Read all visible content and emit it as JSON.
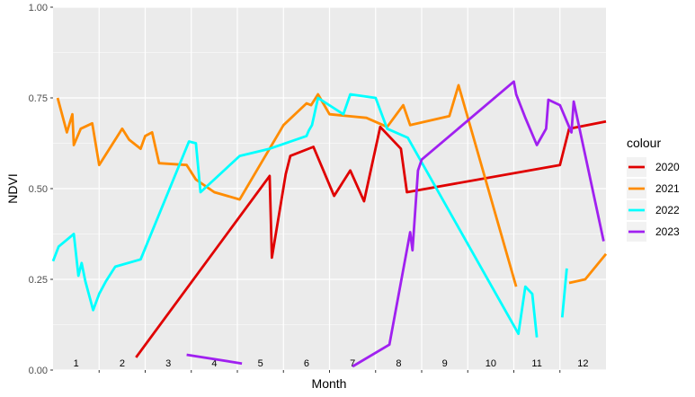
{
  "chart_data": {
    "type": "line",
    "xlabel": "Month",
    "ylabel": "NDVI",
    "ylim": [
      0,
      1
    ],
    "xlim": [
      0.5,
      12.5
    ],
    "y_ticks": [
      0.0,
      0.25,
      0.5,
      0.75,
      1.0
    ],
    "y_tick_labels": [
      "0.00",
      "0.25",
      "0.50",
      "0.75",
      "1.00"
    ],
    "month_labels": [
      "1",
      "2",
      "3",
      "4",
      "5",
      "6",
      "7",
      "8",
      "9",
      "10",
      "11",
      "12"
    ],
    "background": "#ebebeb",
    "grid": true,
    "legend": {
      "title": "colour",
      "position": "right"
    },
    "series": [
      {
        "name": "2020",
        "color": "#e00000",
        "points": [
          [
            2.3,
            0.035
          ],
          [
            5.2,
            0.535
          ],
          [
            5.25,
            0.31
          ],
          [
            5.55,
            0.54
          ],
          [
            5.65,
            0.59
          ],
          [
            6.15,
            0.615
          ],
          [
            6.6,
            0.48
          ],
          [
            6.95,
            0.55
          ],
          [
            7.25,
            0.465
          ],
          [
            7.6,
            0.67
          ],
          [
            8.05,
            0.61
          ],
          [
            8.18,
            0.49
          ],
          [
            11.5,
            0.565
          ],
          [
            11.7,
            0.665
          ],
          [
            12.5,
            0.685
          ]
        ]
      },
      {
        "name": "2021",
        "color": "#ff8c00",
        "points": [
          [
            0.6,
            0.75
          ],
          [
            0.8,
            0.655
          ],
          [
            0.92,
            0.705
          ],
          [
            0.95,
            0.62
          ],
          [
            1.1,
            0.665
          ],
          [
            1.35,
            0.68
          ],
          [
            1.5,
            0.565
          ],
          [
            2.0,
            0.665
          ],
          [
            2.15,
            0.635
          ],
          [
            2.4,
            0.61
          ],
          [
            2.5,
            0.645
          ],
          [
            2.65,
            0.655
          ],
          [
            2.8,
            0.57
          ],
          [
            3.4,
            0.565
          ],
          [
            3.6,
            0.525
          ],
          [
            4.0,
            0.49
          ],
          [
            4.55,
            0.47
          ],
          [
            5.5,
            0.675
          ],
          [
            6.0,
            0.735
          ],
          [
            6.1,
            0.73
          ],
          [
            6.25,
            0.76
          ],
          [
            6.5,
            0.705
          ],
          [
            7.3,
            0.695
          ],
          [
            7.75,
            0.67
          ],
          [
            8.1,
            0.73
          ],
          [
            8.25,
            0.675
          ],
          [
            9.1,
            0.7
          ],
          [
            9.3,
            0.785
          ],
          [
            10.55,
            0.23
          ],
          [
            10.55,
            0.23
          ]
        ]
      },
      {
        "name": "2021",
        "color": "#ff8c00",
        "points": [
          [
            11.7,
            0.24
          ],
          [
            12.05,
            0.25
          ],
          [
            12.5,
            0.32
          ]
        ]
      },
      {
        "name": "2022",
        "color": "#00ffff",
        "points": [
          [
            0.5,
            0.3
          ],
          [
            0.62,
            0.34
          ],
          [
            0.95,
            0.375
          ],
          [
            1.05,
            0.26
          ],
          [
            1.12,
            0.295
          ],
          [
            1.2,
            0.245
          ],
          [
            1.37,
            0.165
          ],
          [
            1.5,
            0.21
          ],
          [
            1.65,
            0.245
          ],
          [
            1.85,
            0.285
          ],
          [
            2.4,
            0.305
          ],
          [
            3.45,
            0.63
          ],
          [
            3.6,
            0.625
          ],
          [
            3.7,
            0.49
          ],
          [
            4.55,
            0.59
          ],
          [
            5.2,
            0.61
          ],
          [
            6.0,
            0.645
          ],
          [
            6.05,
            0.66
          ],
          [
            6.12,
            0.675
          ],
          [
            6.25,
            0.75
          ],
          [
            6.8,
            0.705
          ],
          [
            6.95,
            0.76
          ],
          [
            7.5,
            0.75
          ],
          [
            7.75,
            0.665
          ],
          [
            8.2,
            0.64
          ],
          [
            10.6,
            0.1
          ],
          [
            10.75,
            0.23
          ],
          [
            10.9,
            0.21
          ],
          [
            11.0,
            0.09
          ]
        ]
      },
      {
        "name": "2022",
        "color": "#00ffff",
        "points": [
          [
            11.55,
            0.145
          ],
          [
            11.65,
            0.28
          ]
        ]
      },
      {
        "name": "2023",
        "color": "#a020f0",
        "points": [
          [
            3.4,
            0.042
          ],
          [
            4.6,
            0.018
          ]
        ]
      },
      {
        "name": "2023",
        "color": "#a020f0",
        "points": [
          [
            7.0,
            0.01
          ],
          [
            7.8,
            0.07
          ],
          [
            8.25,
            0.38
          ],
          [
            8.3,
            0.33
          ],
          [
            8.42,
            0.55
          ],
          [
            8.5,
            0.58
          ],
          [
            10.5,
            0.795
          ],
          [
            10.55,
            0.76
          ],
          [
            10.75,
            0.695
          ],
          [
            11.0,
            0.62
          ],
          [
            11.2,
            0.665
          ],
          [
            11.25,
            0.745
          ],
          [
            11.5,
            0.73
          ],
          [
            11.75,
            0.655
          ],
          [
            11.8,
            0.74
          ],
          [
            12.45,
            0.355
          ]
        ]
      }
    ],
    "legend_entries": [
      {
        "label": "2020",
        "color": "#e00000"
      },
      {
        "label": "2021",
        "color": "#ff8c00"
      },
      {
        "label": "2022",
        "color": "#00ffff"
      },
      {
        "label": "2023",
        "color": "#a020f0"
      }
    ]
  }
}
